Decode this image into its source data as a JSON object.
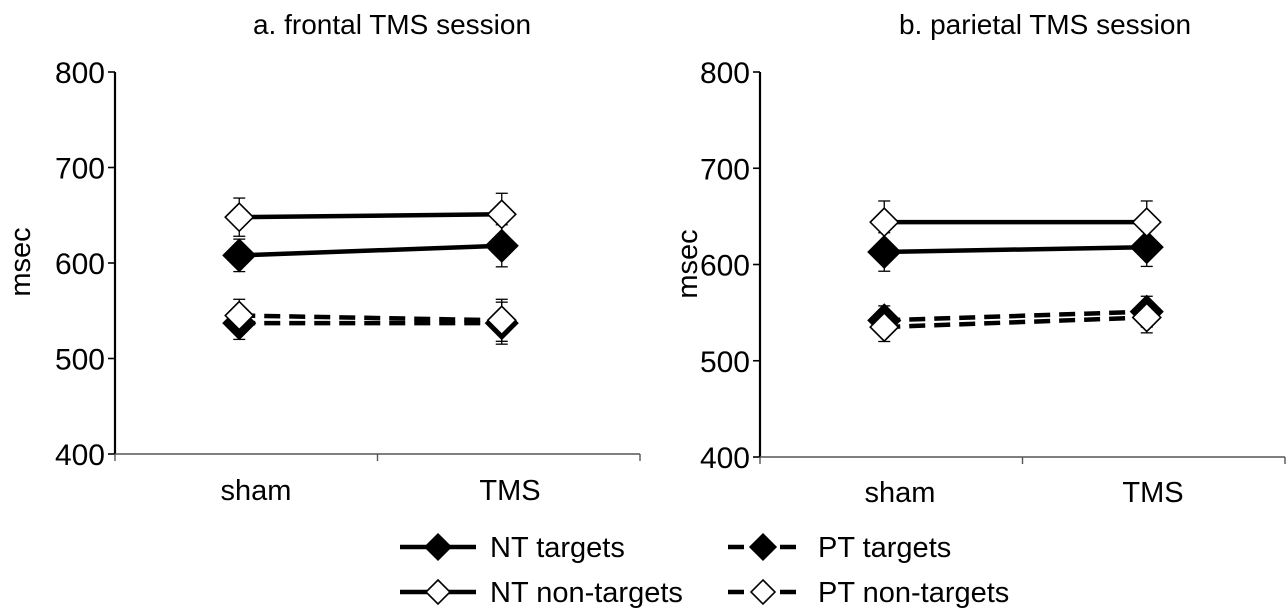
{
  "chart_data": [
    {
      "type": "line",
      "title": "a. frontal TMS session",
      "ylabel": "msec",
      "xlabel": "",
      "ylim": [
        400,
        800
      ],
      "yticks": [
        400,
        500,
        600,
        700,
        800
      ],
      "categories": [
        "sham",
        "TMS"
      ],
      "grid": false,
      "series": [
        {
          "name": "NT targets",
          "values": [
            608,
            618
          ],
          "errors": [
            17,
            22
          ],
          "marker": "filled-diamond",
          "line": "solid"
        },
        {
          "name": "NT non-targets",
          "values": [
            648,
            651
          ],
          "errors": [
            20,
            22
          ],
          "marker": "open-diamond",
          "line": "solid"
        },
        {
          "name": "PT targets",
          "values": [
            537,
            537
          ],
          "errors": [
            17,
            22
          ],
          "marker": "filled-diamond",
          "line": "dashed"
        },
        {
          "name": "PT non-targets",
          "values": [
            545,
            540
          ],
          "errors": [
            17,
            22
          ],
          "marker": "open-diamond",
          "line": "dashed"
        }
      ]
    },
    {
      "type": "line",
      "title": "b. parietal TMS session",
      "ylabel": "msec",
      "xlabel": "",
      "ylim": [
        400,
        800
      ],
      "yticks": [
        400,
        500,
        600,
        700,
        800
      ],
      "categories": [
        "sham",
        "TMS"
      ],
      "grid": false,
      "series": [
        {
          "name": "NT targets",
          "values": [
            613,
            618
          ],
          "errors": [
            20,
            20
          ],
          "marker": "filled-diamond",
          "line": "solid"
        },
        {
          "name": "NT non-targets",
          "values": [
            644,
            644
          ],
          "errors": [
            22,
            22
          ],
          "marker": "open-diamond",
          "line": "solid"
        },
        {
          "name": "PT targets",
          "values": [
            542,
            551
          ],
          "errors": [
            15,
            16
          ],
          "marker": "filled-diamond",
          "line": "dashed"
        },
        {
          "name": "PT non-targets",
          "values": [
            535,
            545
          ],
          "errors": [
            15,
            16
          ],
          "marker": "open-diamond",
          "line": "dashed"
        }
      ]
    }
  ],
  "legend": {
    "placement": "bottom",
    "entries": [
      {
        "label": "NT targets",
        "marker": "filled-diamond",
        "line": "solid"
      },
      {
        "label": "PT targets",
        "marker": "filled-diamond",
        "line": "dashed"
      },
      {
        "label": "NT non-targets",
        "marker": "open-diamond",
        "line": "solid"
      },
      {
        "label": "PT non-targets",
        "marker": "open-diamond",
        "line": "dashed"
      }
    ]
  },
  "colors": {
    "ink": "#000000",
    "background": "#ffffff"
  }
}
